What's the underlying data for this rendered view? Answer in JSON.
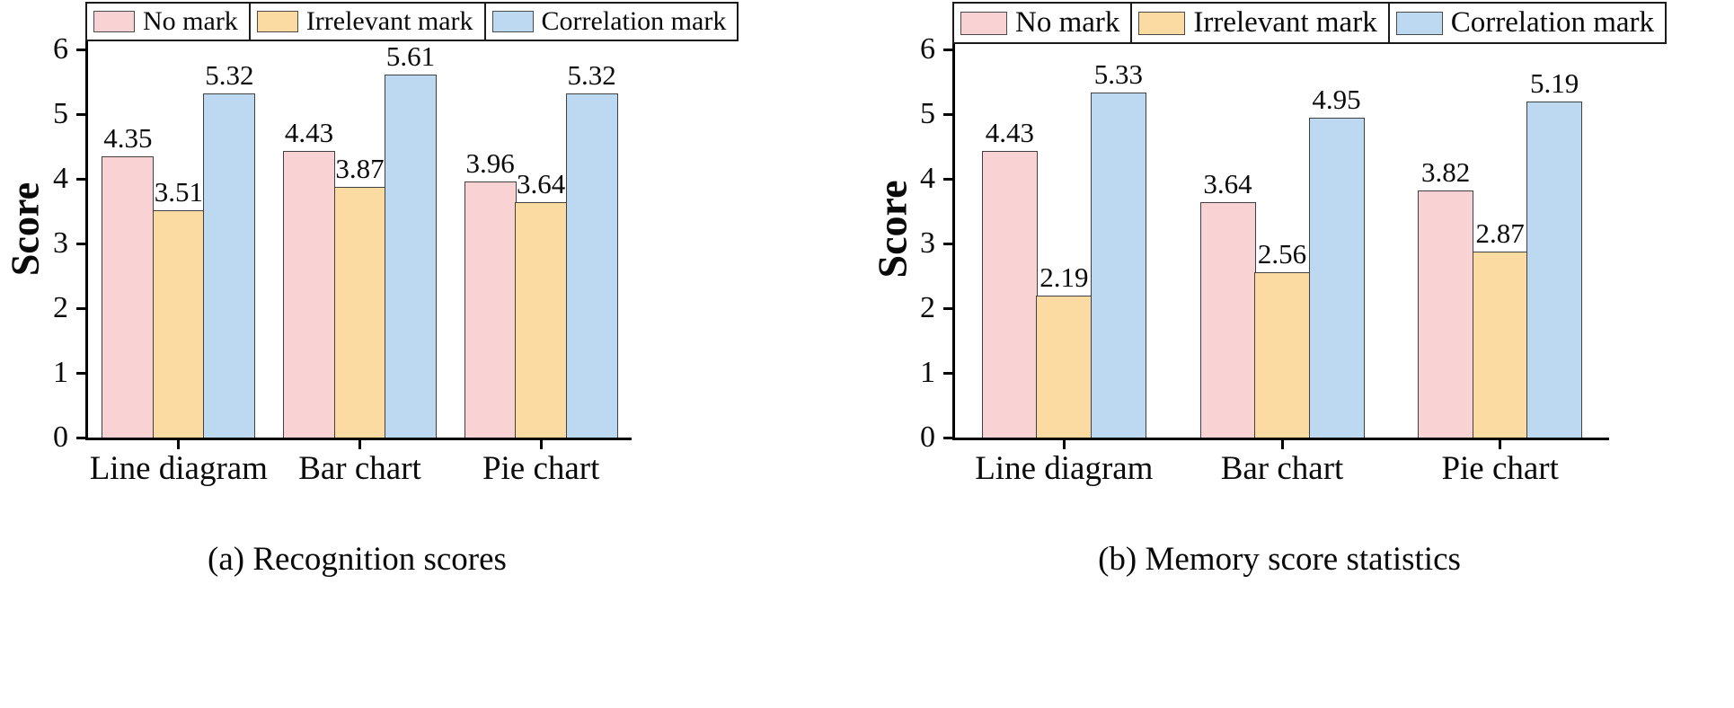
{
  "page": {
    "background": "#ffffff"
  },
  "chart_data": [
    {
      "type": "bar",
      "title": "(a) Recognition scores",
      "xlabel": "",
      "ylabel": "Score",
      "ylim": [
        0,
        6
      ],
      "yticks": [
        0,
        1,
        2,
        3,
        4,
        5,
        6
      ],
      "grid": false,
      "legend_position": "top",
      "categories": [
        "Line diagram",
        "Bar chart",
        "Pie chart"
      ],
      "series": [
        {
          "name": "No mark",
          "color": "#f9d2d4",
          "values": [
            4.35,
            4.43,
            3.96
          ]
        },
        {
          "name": "Irrelevant mark",
          "color": "#fbdba2",
          "values": [
            3.51,
            3.87,
            3.64
          ]
        },
        {
          "name": "Correlation mark",
          "color": "#bdd9f1",
          "values": [
            5.32,
            5.61,
            5.32
          ]
        }
      ]
    },
    {
      "type": "bar",
      "title": "(b) Memory score statistics",
      "xlabel": "",
      "ylabel": "Score",
      "ylim": [
        0,
        6
      ],
      "yticks": [
        0,
        1,
        2,
        3,
        4,
        5,
        6
      ],
      "grid": false,
      "legend_position": "top",
      "categories": [
        "Line diagram",
        "Bar chart",
        "Pie chart"
      ],
      "series": [
        {
          "name": "No mark",
          "color": "#f9d2d4",
          "values": [
            4.43,
            3.64,
            3.82
          ]
        },
        {
          "name": "Irrelevant mark",
          "color": "#fbdba2",
          "values": [
            2.19,
            2.56,
            2.87
          ]
        },
        {
          "name": "Correlation mark",
          "color": "#bdd9f1",
          "values": [
            5.33,
            4.95,
            5.19
          ]
        }
      ]
    }
  ],
  "style": {
    "axis_color": "#000000",
    "bar_border_color": "#404040",
    "text_color": "#0a0a0a"
  }
}
